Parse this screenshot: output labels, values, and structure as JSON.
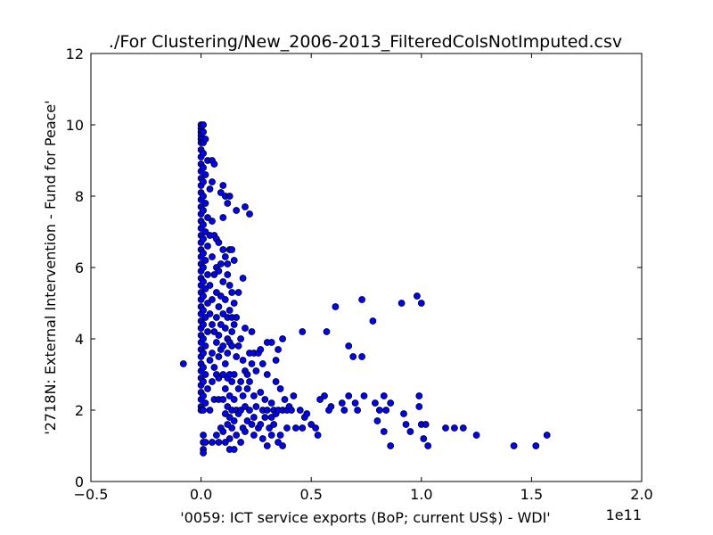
{
  "chart_data": {
    "type": "scatter",
    "title": "./For Clustering/New_2006-2013_FilteredColsNotImputed.csv",
    "xlabel": "'0059: ICT service exports  (BoP; current US$) - WDI'",
    "ylabel": "'2718N: External Intervention - Fund for Peace'",
    "x_offset_label": "1e11",
    "xlim": [
      -0.5,
      2.0
    ],
    "ylim": [
      0,
      12
    ],
    "x_ticks": [
      -0.5,
      0.0,
      0.5,
      1.0,
      1.5,
      2.0
    ],
    "x_tick_labels": [
      "−0.5",
      "0.0",
      "0.5",
      "1.0",
      "1.5",
      "2.0"
    ],
    "y_ticks": [
      0,
      2,
      4,
      6,
      8,
      10,
      12
    ],
    "y_tick_labels": [
      "0",
      "2",
      "4",
      "6",
      "8",
      "10",
      "12"
    ],
    "grid": false,
    "marker_color": "#0000ff",
    "marker_edge_color": "#000000",
    "points": [
      [
        -0.08,
        3.3
      ],
      [
        0.0,
        10.0
      ],
      [
        0.0,
        9.9
      ],
      [
        0.0,
        9.8
      ],
      [
        0.0,
        9.7
      ],
      [
        0.0,
        9.6
      ],
      [
        0.0,
        9.5
      ],
      [
        0.0,
        9.3
      ],
      [
        0.0,
        9.1
      ],
      [
        0.0,
        8.9
      ],
      [
        0.0,
        8.7
      ],
      [
        0.0,
        8.5
      ],
      [
        0.0,
        8.3
      ],
      [
        0.0,
        8.1
      ],
      [
        0.0,
        7.9
      ],
      [
        0.0,
        7.7
      ],
      [
        0.0,
        7.5
      ],
      [
        0.0,
        7.3
      ],
      [
        0.0,
        7.1
      ],
      [
        0.0,
        6.9
      ],
      [
        0.0,
        6.7
      ],
      [
        0.0,
        6.5
      ],
      [
        0.0,
        6.3
      ],
      [
        0.0,
        6.1
      ],
      [
        0.0,
        5.9
      ],
      [
        0.0,
        5.7
      ],
      [
        0.0,
        5.5
      ],
      [
        0.0,
        5.3
      ],
      [
        0.0,
        5.1
      ],
      [
        0.0,
        4.9
      ],
      [
        0.0,
        4.7
      ],
      [
        0.0,
        4.5
      ],
      [
        0.0,
        4.3
      ],
      [
        0.0,
        4.1
      ],
      [
        0.0,
        3.9
      ],
      [
        0.0,
        3.7
      ],
      [
        0.0,
        3.5
      ],
      [
        0.0,
        3.3
      ],
      [
        0.0,
        3.1
      ],
      [
        0.0,
        2.9
      ],
      [
        0.0,
        2.7
      ],
      [
        0.0,
        2.5
      ],
      [
        0.0,
        2.3
      ],
      [
        0.0,
        2.1
      ],
      [
        0.0,
        2.0
      ],
      [
        0.01,
        1.3
      ],
      [
        0.01,
        1.1
      ],
      [
        0.01,
        0.9
      ],
      [
        0.01,
        0.8
      ],
      [
        0.01,
        10.0
      ],
      [
        0.01,
        9.8
      ],
      [
        0.01,
        9.5
      ],
      [
        0.01,
        9.2
      ],
      [
        0.01,
        8.8
      ],
      [
        0.01,
        8.4
      ],
      [
        0.01,
        8.0
      ],
      [
        0.01,
        7.6
      ],
      [
        0.01,
        7.2
      ],
      [
        0.01,
        6.8
      ],
      [
        0.01,
        6.4
      ],
      [
        0.01,
        6.0
      ],
      [
        0.01,
        5.6
      ],
      [
        0.01,
        5.2
      ],
      [
        0.01,
        4.8
      ],
      [
        0.01,
        4.4
      ],
      [
        0.01,
        4.0
      ],
      [
        0.01,
        3.6
      ],
      [
        0.01,
        3.2
      ],
      [
        0.01,
        2.8
      ],
      [
        0.01,
        2.4
      ],
      [
        0.01,
        2.0
      ],
      [
        0.02,
        9.6
      ],
      [
        0.02,
        8.6
      ],
      [
        0.02,
        7.8
      ],
      [
        0.02,
        7.0
      ],
      [
        0.02,
        6.2
      ],
      [
        0.02,
        5.4
      ],
      [
        0.02,
        4.6
      ],
      [
        0.02,
        3.8
      ],
      [
        0.02,
        3.0
      ],
      [
        0.02,
        2.2
      ],
      [
        0.02,
        1.1
      ],
      [
        0.03,
        9.0
      ],
      [
        0.03,
        7.4
      ],
      [
        0.03,
        5.8
      ],
      [
        0.03,
        4.2
      ],
      [
        0.03,
        2.6
      ],
      [
        0.03,
        6.6
      ],
      [
        0.03,
        5.0
      ],
      [
        0.04,
        8.2
      ],
      [
        0.04,
        6.9
      ],
      [
        0.04,
        5.5
      ],
      [
        0.04,
        4.7
      ],
      [
        0.04,
        3.4
      ],
      [
        0.04,
        2.0
      ],
      [
        0.05,
        8.4
      ],
      [
        0.05,
        7.3
      ],
      [
        0.05,
        6.3
      ],
      [
        0.05,
        5.1
      ],
      [
        0.05,
        4.4
      ],
      [
        0.05,
        3.6
      ],
      [
        0.05,
        2.8
      ],
      [
        0.05,
        1.1
      ],
      [
        0.05,
        9.0
      ],
      [
        0.06,
        8.9
      ],
      [
        0.06,
        6.9
      ],
      [
        0.06,
        5.8
      ],
      [
        0.06,
        4.2
      ],
      [
        0.06,
        3.2
      ],
      [
        0.06,
        2.3
      ],
      [
        0.07,
        6.8
      ],
      [
        0.07,
        6.0
      ],
      [
        0.07,
        5.3
      ],
      [
        0.07,
        4.6
      ],
      [
        0.07,
        3.9
      ],
      [
        0.07,
        3.0
      ],
      [
        0.07,
        1.3
      ],
      [
        0.08,
        6.7
      ],
      [
        0.08,
        5.9
      ],
      [
        0.08,
        4.9
      ],
      [
        0.08,
        4.1
      ],
      [
        0.08,
        3.5
      ],
      [
        0.08,
        2.9
      ],
      [
        0.08,
        2.3
      ],
      [
        0.08,
        1.1
      ],
      [
        0.09,
        8.1
      ],
      [
        0.09,
        6.1
      ],
      [
        0.09,
        5.2
      ],
      [
        0.09,
        4.4
      ],
      [
        0.09,
        3.7
      ],
      [
        0.09,
        1.5
      ],
      [
        0.1,
        8.3
      ],
      [
        0.1,
        7.4
      ],
      [
        0.1,
        6.5
      ],
      [
        0.1,
        5.6
      ],
      [
        0.1,
        4.7
      ],
      [
        0.1,
        3.8
      ],
      [
        0.1,
        3.0
      ],
      [
        0.1,
        2.3
      ],
      [
        0.1,
        1.4
      ],
      [
        0.11,
        8.0
      ],
      [
        0.11,
        6.3
      ],
      [
        0.11,
        5.1
      ],
      [
        0.11,
        4.3
      ],
      [
        0.11,
        3.3
      ],
      [
        0.11,
        2.6
      ],
      [
        0.11,
        1.9
      ],
      [
        0.11,
        1.1
      ],
      [
        0.12,
        7.8
      ],
      [
        0.12,
        6.1
      ],
      [
        0.12,
        5.8
      ],
      [
        0.12,
        4.6
      ],
      [
        0.12,
        4.0
      ],
      [
        0.12,
        3.6
      ],
      [
        0.12,
        2.9
      ],
      [
        0.12,
        2.1
      ],
      [
        0.12,
        1.6
      ],
      [
        0.13,
        8.0
      ],
      [
        0.13,
        6.5
      ],
      [
        0.13,
        5.5
      ],
      [
        0.13,
        4.8
      ],
      [
        0.13,
        3.9
      ],
      [
        0.13,
        3.0
      ],
      [
        0.13,
        2.4
      ],
      [
        0.13,
        1.8
      ],
      [
        0.13,
        1.2
      ],
      [
        0.13,
        0.9
      ],
      [
        0.14,
        6.5
      ],
      [
        0.14,
        5.3
      ],
      [
        0.14,
        4.6
      ],
      [
        0.14,
        4.2
      ],
      [
        0.14,
        3.8
      ],
      [
        0.14,
        2.8
      ],
      [
        0.14,
        2.0
      ],
      [
        0.14,
        1.5
      ],
      [
        0.15,
        6.2
      ],
      [
        0.15,
        5.0
      ],
      [
        0.15,
        4.4
      ],
      [
        0.15,
        3.0
      ],
      [
        0.15,
        2.3
      ],
      [
        0.15,
        1.7
      ],
      [
        0.15,
        0.9
      ],
      [
        0.16,
        7.6
      ],
      [
        0.16,
        4.6
      ],
      [
        0.16,
        3.5
      ],
      [
        0.16,
        2.0
      ],
      [
        0.16,
        1.3
      ],
      [
        0.17,
        5.3
      ],
      [
        0.17,
        3.8
      ],
      [
        0.17,
        2.6
      ],
      [
        0.17,
        1.9
      ],
      [
        0.18,
        4.0
      ],
      [
        0.18,
        2.8
      ],
      [
        0.18,
        2.0
      ],
      [
        0.18,
        1.1
      ],
      [
        0.19,
        5.7
      ],
      [
        0.19,
        3.4
      ],
      [
        0.19,
        2.4
      ],
      [
        0.19,
        1.5
      ],
      [
        0.2,
        7.7
      ],
      [
        0.2,
        4.3
      ],
      [
        0.2,
        3.1
      ],
      [
        0.2,
        2.1
      ],
      [
        0.2,
        1.4
      ],
      [
        0.21,
        3.0
      ],
      [
        0.21,
        2.6
      ],
      [
        0.21,
        1.7
      ],
      [
        0.22,
        7.5
      ],
      [
        0.22,
        3.6
      ],
      [
        0.22,
        2.8
      ],
      [
        0.22,
        2.0
      ],
      [
        0.23,
        4.2
      ],
      [
        0.23,
        3.3
      ],
      [
        0.23,
        1.6
      ],
      [
        0.24,
        3.6
      ],
      [
        0.24,
        2.4
      ],
      [
        0.24,
        1.8
      ],
      [
        0.24,
        1.3
      ],
      [
        0.25,
        3.1
      ],
      [
        0.25,
        2.1
      ],
      [
        0.26,
        3.6
      ],
      [
        0.26,
        1.5
      ],
      [
        0.27,
        3.7
      ],
      [
        0.27,
        2.5
      ],
      [
        0.27,
        1.6
      ],
      [
        0.28,
        3.3
      ],
      [
        0.28,
        2.0
      ],
      [
        0.28,
        1.2
      ],
      [
        0.29,
        2.3
      ],
      [
        0.29,
        1.8
      ],
      [
        0.3,
        3.9
      ],
      [
        0.3,
        3.0
      ],
      [
        0.3,
        2.0
      ],
      [
        0.3,
        1.0
      ],
      [
        0.31,
        1.5
      ],
      [
        0.32,
        3.9
      ],
      [
        0.32,
        2.2
      ],
      [
        0.32,
        1.8
      ],
      [
        0.32,
        1.3
      ],
      [
        0.33,
        2.0
      ],
      [
        0.33,
        1.6
      ],
      [
        0.34,
        3.4
      ],
      [
        0.34,
        2.8
      ],
      [
        0.34,
        1.9
      ],
      [
        0.35,
        3.7
      ],
      [
        0.35,
        2.0
      ],
      [
        0.35,
        1.1
      ],
      [
        0.36,
        2.6
      ],
      [
        0.36,
        1.3
      ],
      [
        0.37,
        4.0
      ],
      [
        0.37,
        2.0
      ],
      [
        0.37,
        1.0
      ],
      [
        0.38,
        2.3
      ],
      [
        0.39,
        2.0
      ],
      [
        0.39,
        1.5
      ],
      [
        0.4,
        2.1
      ],
      [
        0.41,
        2.0
      ],
      [
        0.42,
        2.4
      ],
      [
        0.43,
        1.5
      ],
      [
        0.45,
        2.0
      ],
      [
        0.46,
        4.2
      ],
      [
        0.46,
        1.5
      ],
      [
        0.47,
        1.8
      ],
      [
        0.48,
        1.9
      ],
      [
        0.5,
        1.6
      ],
      [
        0.52,
        1.5
      ],
      [
        0.53,
        1.3
      ],
      [
        0.54,
        2.3
      ],
      [
        0.56,
        2.4
      ],
      [
        0.57,
        4.2
      ],
      [
        0.58,
        2.0
      ],
      [
        0.59,
        2.1
      ],
      [
        0.61,
        4.9
      ],
      [
        0.64,
        2.2
      ],
      [
        0.65,
        2.0
      ],
      [
        0.67,
        3.8
      ],
      [
        0.67,
        2.4
      ],
      [
        0.69,
        3.5
      ],
      [
        0.7,
        2.2
      ],
      [
        0.71,
        2.0
      ],
      [
        0.73,
        5.1
      ],
      [
        0.73,
        3.5
      ],
      [
        0.74,
        2.4
      ],
      [
        0.78,
        4.5
      ],
      [
        0.79,
        2.2
      ],
      [
        0.8,
        1.7
      ],
      [
        0.81,
        2.0
      ],
      [
        0.83,
        2.4
      ],
      [
        0.83,
        1.4
      ],
      [
        0.84,
        2.0
      ],
      [
        0.86,
        2.2
      ],
      [
        0.86,
        1.0
      ],
      [
        0.91,
        5.0
      ],
      [
        0.92,
        1.9
      ],
      [
        0.93,
        1.6
      ],
      [
        0.95,
        1.4
      ],
      [
        0.98,
        5.2
      ],
      [
        0.99,
        2.4
      ],
      [
        0.99,
        2.1
      ],
      [
        1.0,
        5.0
      ],
      [
        1.0,
        1.6
      ],
      [
        1.01,
        1.2
      ],
      [
        1.02,
        1.6
      ],
      [
        1.03,
        1.0
      ],
      [
        1.11,
        1.5
      ],
      [
        1.15,
        1.5
      ],
      [
        1.19,
        1.5
      ],
      [
        1.25,
        1.3
      ],
      [
        1.42,
        1.0
      ],
      [
        1.52,
        1.0
      ],
      [
        1.57,
        1.3
      ]
    ]
  }
}
